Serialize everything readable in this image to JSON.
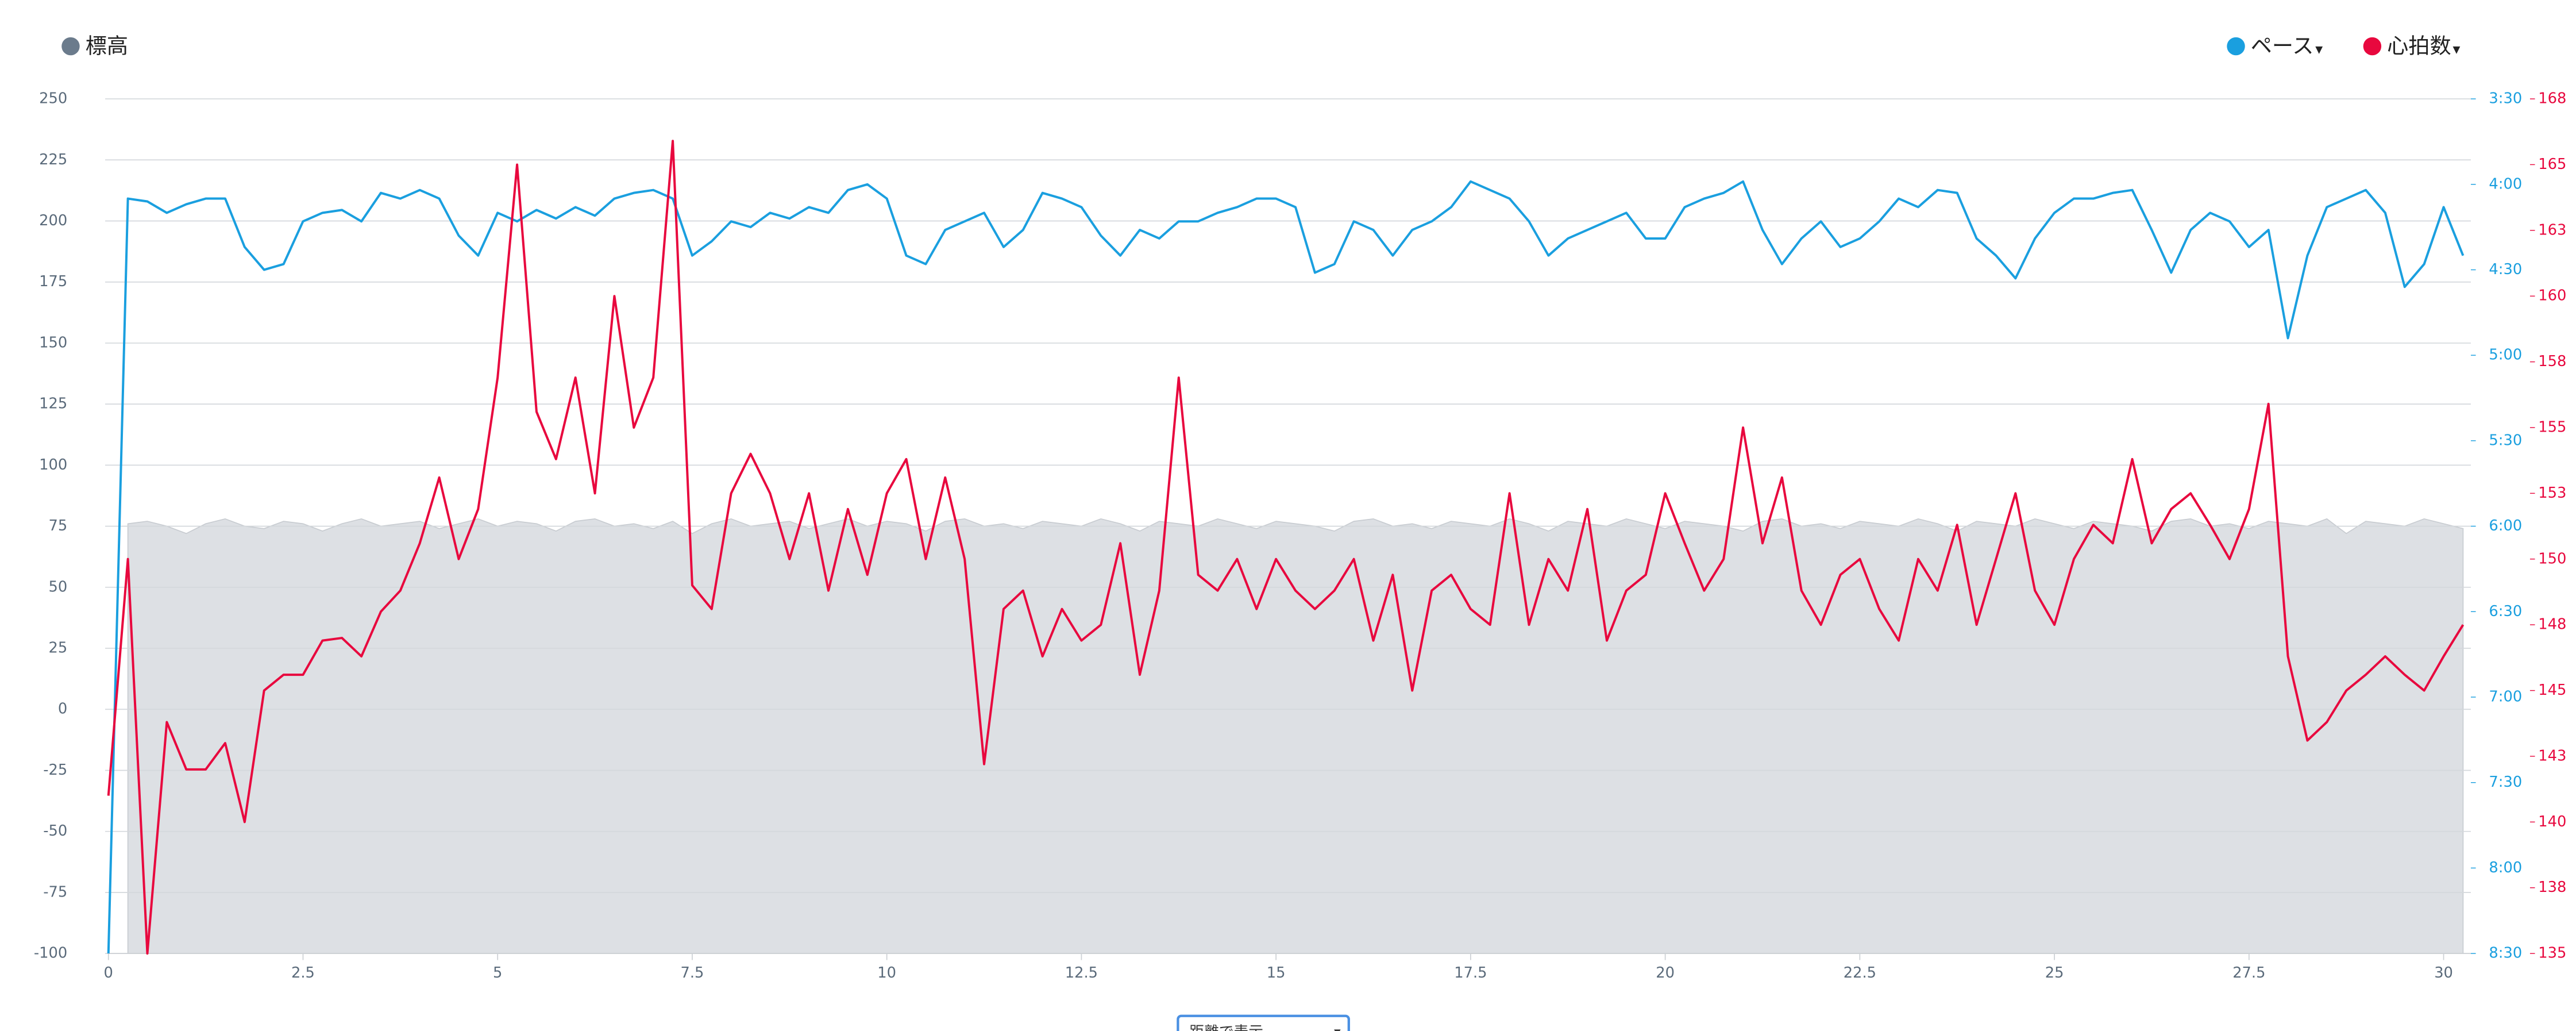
{
  "chart_data": {
    "type": "line",
    "x": [
      0,
      0.25,
      0.5,
      0.75,
      1,
      1.25,
      1.5,
      1.75,
      2,
      2.25,
      2.5,
      2.75,
      3,
      3.25,
      3.5,
      3.75,
      4,
      4.25,
      4.5,
      4.75,
      5,
      5.25,
      5.5,
      5.75,
      6,
      6.25,
      6.5,
      6.75,
      7,
      7.25,
      7.5,
      7.75,
      8,
      8.25,
      8.5,
      8.75,
      9,
      9.25,
      9.5,
      9.75,
      10,
      10.25,
      10.5,
      10.75,
      11,
      11.25,
      11.5,
      11.75,
      12,
      12.25,
      12.5,
      12.75,
      13,
      13.25,
      13.5,
      13.75,
      14,
      14.25,
      14.5,
      14.75,
      15,
      15.25,
      15.5,
      15.75,
      16,
      16.25,
      16.5,
      16.75,
      17,
      17.25,
      17.5,
      17.75,
      18,
      18.25,
      18.5,
      18.75,
      19,
      19.25,
      19.5,
      19.75,
      20,
      20.25,
      20.5,
      20.75,
      21,
      21.25,
      21.5,
      21.75,
      22,
      22.25,
      22.5,
      22.75,
      23,
      23.25,
      23.5,
      23.75,
      24,
      24.25,
      24.5,
      24.75,
      25,
      25.25,
      25.5,
      25.75,
      26,
      26.25,
      26.5,
      26.75,
      27,
      27.25,
      27.5,
      27.75,
      28,
      28.25,
      28.5,
      28.75,
      29,
      29.25,
      29.5,
      29.75,
      30,
      30.25
    ],
    "series": [
      {
        "name": "標高",
        "type": "area",
        "axis": "y",
        "color": "#dde0e4",
        "legend_color": "#6b7b8c",
        "values": [
          null,
          76,
          77,
          75,
          72,
          76,
          78,
          75,
          74,
          77,
          76,
          73,
          76,
          78,
          75,
          76,
          77,
          74,
          76,
          78,
          75,
          77,
          76,
          73,
          77,
          78,
          75,
          76,
          74,
          77,
          72,
          76,
          78,
          75,
          76,
          77,
          74,
          76,
          78,
          75,
          77,
          76,
          73,
          77,
          78,
          75,
          76,
          74,
          77,
          76,
          75,
          78,
          76,
          73,
          77,
          76,
          75,
          78,
          76,
          74,
          77,
          76,
          75,
          73,
          77,
          78,
          75,
          76,
          74,
          77,
          76,
          75,
          78,
          76,
          73,
          77,
          76,
          75,
          78,
          76,
          74,
          77,
          76,
          75,
          73,
          77,
          78,
          75,
          76,
          74,
          77,
          76,
          75,
          78,
          76,
          73,
          77,
          76,
          75,
          78,
          76,
          74,
          77,
          76,
          75,
          73,
          77,
          78,
          75,
          76,
          74,
          77,
          76,
          75,
          78,
          72,
          77,
          76,
          75,
          78,
          76,
          74
        ]
      },
      {
        "name": "ペース",
        "type": "line",
        "axis": "y2",
        "color": "#1a9fdf",
        "values": [
          510,
          245,
          246,
          250,
          247,
          245,
          245,
          262,
          270,
          268,
          253,
          250,
          249,
          253,
          243,
          245,
          242,
          245,
          258,
          265,
          250,
          253,
          249,
          252,
          248,
          251,
          245,
          243,
          242,
          245,
          265,
          260,
          253,
          255,
          250,
          252,
          248,
          250,
          242,
          240,
          245,
          265,
          268,
          256,
          253,
          250,
          262,
          256,
          243,
          245,
          248,
          258,
          265,
          256,
          259,
          253,
          253,
          250,
          248,
          245,
          245,
          248,
          271,
          268,
          253,
          256,
          265,
          256,
          253,
          248,
          239,
          242,
          245,
          253,
          265,
          259,
          256,
          253,
          250,
          259,
          259,
          248,
          245,
          243,
          239,
          256,
          268,
          259,
          253,
          262,
          259,
          253,
          245,
          248,
          242,
          243,
          259,
          265,
          273,
          259,
          250,
          245,
          245,
          243,
          242,
          256,
          271,
          256,
          250,
          253,
          262,
          256,
          294,
          265,
          248,
          245,
          242,
          250,
          276,
          268,
          248,
          265
        ]
      },
      {
        "name": "心拍数",
        "type": "line",
        "axis": "y3",
        "color": "#e8083e",
        "values": [
          141,
          150,
          135,
          143.8,
          142,
          142,
          143,
          140,
          145,
          145.6,
          145.6,
          146.9,
          147,
          146.3,
          148,
          148.8,
          150.6,
          153.1,
          150,
          151.9,
          156.9,
          165,
          155.6,
          153.8,
          156.9,
          152.5,
          160,
          155,
          156.9,
          165.9,
          149,
          148.1,
          152.5,
          154,
          152.5,
          150,
          152.5,
          148.8,
          151.9,
          149.4,
          152.5,
          153.8,
          150,
          153.1,
          150,
          142.2,
          148.1,
          148.8,
          146.3,
          148.1,
          146.9,
          147.5,
          150.6,
          145.6,
          148.8,
          156.9,
          149.4,
          148.8,
          150,
          148.1,
          150,
          148.8,
          148.1,
          148.8,
          150,
          146.9,
          149.4,
          145,
          148.8,
          149.4,
          148.1,
          147.5,
          152.5,
          147.5,
          150,
          148.8,
          151.9,
          146.9,
          148.8,
          149.4,
          152.5,
          150.6,
          148.8,
          150,
          155,
          150.6,
          153.1,
          148.8,
          147.5,
          149.4,
          150,
          148.1,
          146.9,
          150,
          148.8,
          151.3,
          147.5,
          150,
          152.5,
          148.8,
          147.5,
          150,
          151.3,
          150.6,
          153.8,
          150.6,
          151.9,
          152.5,
          151.3,
          150,
          151.9,
          155.9,
          146.3,
          143.1,
          143.8,
          145,
          145.6,
          146.3,
          145.6,
          145,
          146.3,
          147.5
        ]
      }
    ],
    "xlim": [
      0,
      30.35
    ],
    "xticks": [
      0,
      2.5,
      5,
      7.5,
      10,
      12.5,
      15,
      17.5,
      20,
      22.5,
      25,
      27.5,
      30
    ],
    "ylim": [
      -100,
      250
    ],
    "yticks": [
      -100,
      -75,
      -50,
      -25,
      0,
      25,
      50,
      75,
      100,
      125,
      150,
      175,
      200,
      225,
      250
    ],
    "y2lim": [
      510,
      210
    ],
    "y2ticks": [
      {
        "value": 210,
        "label": "3:30"
      },
      {
        "value": 240,
        "label": "4:00"
      },
      {
        "value": 270,
        "label": "4:30"
      },
      {
        "value": 300,
        "label": "5:00"
      },
      {
        "value": 330,
        "label": "5:30"
      },
      {
        "value": 360,
        "label": "6:00"
      },
      {
        "value": 390,
        "label": "6:30"
      },
      {
        "value": 420,
        "label": "7:00"
      },
      {
        "value": 450,
        "label": "7:30"
      },
      {
        "value": 480,
        "label": "8:00"
      },
      {
        "value": 510,
        "label": "8:30"
      }
    ],
    "y3lim": [
      135,
      167.5
    ],
    "y3ticks": [
      135,
      {
        "value": 137.5,
        "label": "138"
      },
      140,
      {
        "value": 142.5,
        "label": "143"
      },
      145,
      {
        "value": 147.5,
        "label": "148"
      },
      150,
      {
        "value": 152.5,
        "label": "153"
      },
      155,
      {
        "value": 157.5,
        "label": "158"
      },
      160,
      {
        "value": 162.5,
        "label": "163"
      },
      165,
      {
        "value": 167.5,
        "label": "168"
      }
    ],
    "grid": true,
    "legend_dropdown_symbol": "▾",
    "x_mode_select": "距離で表示"
  }
}
